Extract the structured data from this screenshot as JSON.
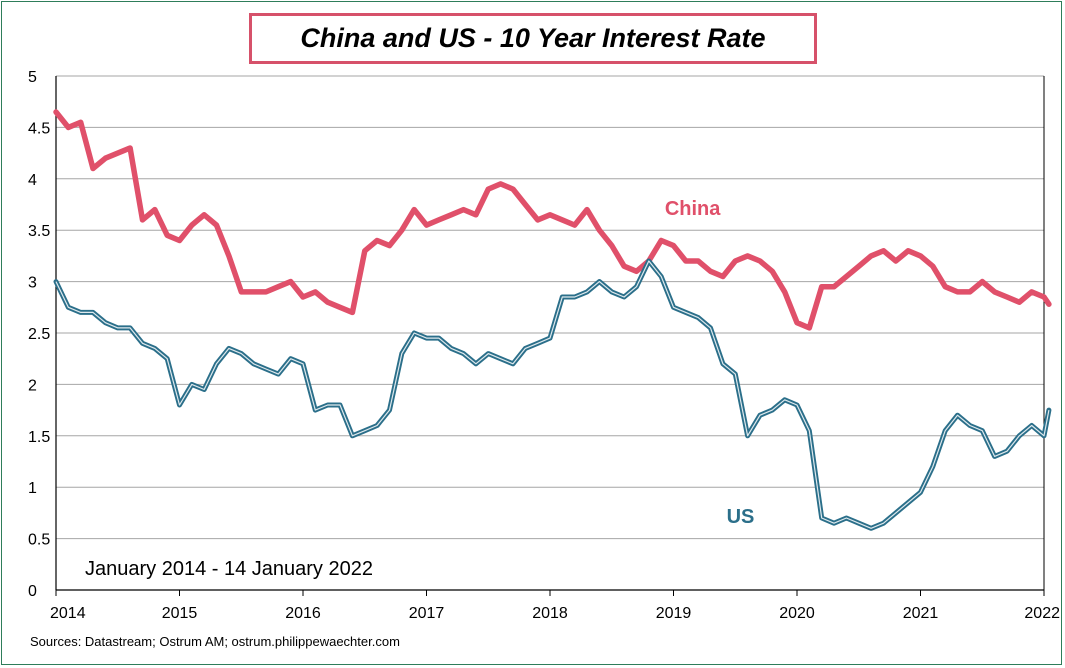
{
  "title": "China and US - 10 Year Interest Rate",
  "subtitle": "January 2014 - 14 January 2022",
  "source": "Sources: Datastream; Ostrum AM; ostrum.philippewaechter.com",
  "colors": {
    "china": "#e0506a",
    "us": "#2b6f8a",
    "grid": "#a6a6a6",
    "title_border": "#d6516a"
  },
  "chart_data": {
    "type": "line",
    "title": "China and US - 10 Year Interest Rate",
    "xlabel": "",
    "ylabel": "",
    "xlim": [
      2014,
      2022
    ],
    "ylim": [
      0,
      5
    ],
    "grid": true,
    "x_ticks": [
      "2014",
      "2015",
      "2016",
      "2017",
      "2018",
      "2019",
      "2020",
      "2021",
      "2022"
    ],
    "y_ticks": [
      "0",
      "0.5",
      "1",
      "1.5",
      "2",
      "2.5",
      "3",
      "3.5",
      "4",
      "4.5",
      "5"
    ],
    "series": [
      {
        "name": "China",
        "x": [
          2014.0,
          2014.1,
          2014.2,
          2014.3,
          2014.4,
          2014.5,
          2014.6,
          2014.7,
          2014.8,
          2014.9,
          2015.0,
          2015.1,
          2015.2,
          2015.3,
          2015.4,
          2015.5,
          2015.6,
          2015.7,
          2015.8,
          2015.9,
          2016.0,
          2016.1,
          2016.2,
          2016.3,
          2016.4,
          2016.5,
          2016.6,
          2016.7,
          2016.8,
          2016.9,
          2017.0,
          2017.1,
          2017.2,
          2017.3,
          2017.4,
          2017.5,
          2017.6,
          2017.7,
          2017.8,
          2017.9,
          2018.0,
          2018.1,
          2018.2,
          2018.3,
          2018.4,
          2018.5,
          2018.6,
          2018.7,
          2018.8,
          2018.9,
          2019.0,
          2019.1,
          2019.2,
          2019.3,
          2019.4,
          2019.5,
          2019.6,
          2019.7,
          2019.8,
          2019.9,
          2020.0,
          2020.1,
          2020.2,
          2020.3,
          2020.4,
          2020.5,
          2020.6,
          2020.7,
          2020.8,
          2020.9,
          2021.0,
          2021.1,
          2021.2,
          2021.3,
          2021.4,
          2021.5,
          2021.6,
          2021.7,
          2021.8,
          2021.9,
          2022.0,
          2022.04
        ],
        "values": [
          4.65,
          4.5,
          4.55,
          4.1,
          4.2,
          4.25,
          4.3,
          3.6,
          3.7,
          3.45,
          3.4,
          3.55,
          3.65,
          3.55,
          3.25,
          2.9,
          2.9,
          2.9,
          2.95,
          3.0,
          2.85,
          2.9,
          2.8,
          2.75,
          2.7,
          3.3,
          3.4,
          3.35,
          3.5,
          3.7,
          3.55,
          3.6,
          3.65,
          3.7,
          3.65,
          3.9,
          3.95,
          3.9,
          3.75,
          3.6,
          3.65,
          3.6,
          3.55,
          3.7,
          3.5,
          3.35,
          3.15,
          3.1,
          3.2,
          3.4,
          3.35,
          3.2,
          3.2,
          3.1,
          3.05,
          3.2,
          3.25,
          3.2,
          3.1,
          2.9,
          2.6,
          2.55,
          2.95,
          2.95,
          3.05,
          3.15,
          3.25,
          3.3,
          3.2,
          3.3,
          3.25,
          3.15,
          2.95,
          2.9,
          2.9,
          3.0,
          2.9,
          2.85,
          2.8,
          2.9,
          2.85,
          2.78
        ]
      },
      {
        "name": "US",
        "x": [
          2014.0,
          2014.1,
          2014.2,
          2014.3,
          2014.4,
          2014.5,
          2014.6,
          2014.7,
          2014.8,
          2014.9,
          2015.0,
          2015.1,
          2015.2,
          2015.3,
          2015.4,
          2015.5,
          2015.6,
          2015.7,
          2015.8,
          2015.9,
          2016.0,
          2016.1,
          2016.2,
          2016.3,
          2016.4,
          2016.5,
          2016.6,
          2016.7,
          2016.8,
          2016.9,
          2017.0,
          2017.1,
          2017.2,
          2017.3,
          2017.4,
          2017.5,
          2017.6,
          2017.7,
          2017.8,
          2017.9,
          2018.0,
          2018.1,
          2018.2,
          2018.3,
          2018.4,
          2018.5,
          2018.6,
          2018.7,
          2018.8,
          2018.9,
          2019.0,
          2019.1,
          2019.2,
          2019.3,
          2019.4,
          2019.5,
          2019.6,
          2019.7,
          2019.8,
          2019.9,
          2020.0,
          2020.1,
          2020.2,
          2020.3,
          2020.4,
          2020.5,
          2020.6,
          2020.7,
          2020.8,
          2020.9,
          2021.0,
          2021.1,
          2021.2,
          2021.3,
          2021.4,
          2021.5,
          2021.6,
          2021.7,
          2021.8,
          2021.9,
          2022.0,
          2022.04
        ],
        "values": [
          3.0,
          2.75,
          2.7,
          2.7,
          2.6,
          2.55,
          2.55,
          2.4,
          2.35,
          2.25,
          1.8,
          2.0,
          1.95,
          2.2,
          2.35,
          2.3,
          2.2,
          2.15,
          2.1,
          2.25,
          2.2,
          1.75,
          1.8,
          1.8,
          1.5,
          1.55,
          1.6,
          1.75,
          2.3,
          2.5,
          2.45,
          2.45,
          2.35,
          2.3,
          2.2,
          2.3,
          2.25,
          2.2,
          2.35,
          2.4,
          2.45,
          2.85,
          2.85,
          2.9,
          3.0,
          2.9,
          2.85,
          2.95,
          3.2,
          3.05,
          2.75,
          2.7,
          2.65,
          2.55,
          2.2,
          2.1,
          1.5,
          1.7,
          1.75,
          1.85,
          1.8,
          1.55,
          0.7,
          0.65,
          0.7,
          0.65,
          0.6,
          0.65,
          0.75,
          0.85,
          0.95,
          1.2,
          1.55,
          1.7,
          1.6,
          1.55,
          1.3,
          1.35,
          1.5,
          1.6,
          1.5,
          1.75
        ]
      }
    ],
    "annotations": [
      {
        "text": "China",
        "series": "China"
      },
      {
        "text": "US",
        "series": "US"
      }
    ]
  }
}
